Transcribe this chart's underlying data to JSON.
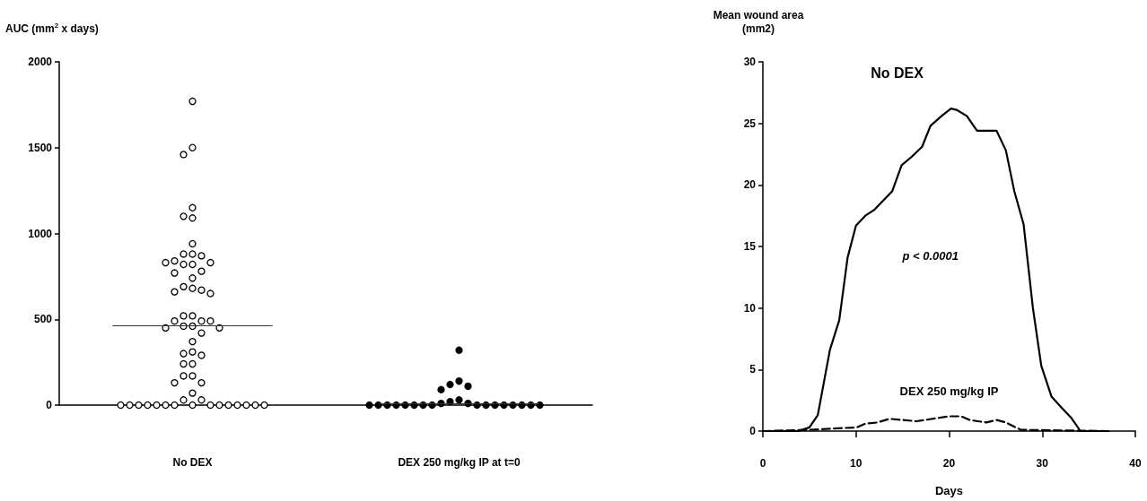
{
  "chart_data": [
    {
      "type": "scatter",
      "categories": [
        "No DEX",
        "DEX 250 mg/kg IP at t=0"
      ],
      "ylabel": "AUC (mm$^{2}$ x days)",
      "ylim": [
        0,
        2000
      ],
      "yticks": [
        0,
        500,
        1000,
        1500,
        2000
      ],
      "grid": false,
      "marker": "circle",
      "ref_lines": [
        {
          "axis": "y",
          "value": 462
        },
        {
          "axis": "y",
          "value": 10
        }
      ],
      "series": [
        {
          "color": "#ffffff",
          "x": [
            "No DEX",
            "No DEX",
            "No DEX",
            "No DEX",
            "No DEX",
            "No DEX",
            "No DEX",
            "No DEX",
            "No DEX",
            "No DEX",
            "No DEX",
            "No DEX",
            "No DEX",
            "No DEX",
            "No DEX",
            "No DEX",
            "No DEX",
            "No DEX",
            "No DEX",
            "No DEX",
            "No DEX",
            "No DEX",
            "No DEX",
            "No DEX",
            "No DEX",
            "No DEX",
            "No DEX",
            "No DEX",
            "No DEX",
            "No DEX",
            "No DEX",
            "No DEX",
            "No DEX",
            "No DEX",
            "No DEX",
            "No DEX",
            "No DEX",
            "No DEX",
            "No DEX",
            "No DEX",
            "No DEX",
            "No DEX",
            "No DEX",
            "No DEX",
            "No DEX",
            "No DEX",
            "No DEX",
            "No DEX",
            "No DEX",
            "No DEX",
            "No DEX",
            "No DEX",
            "No DEX",
            "No DEX",
            "No DEX",
            "No DEX",
            "No DEX",
            "No DEX",
            "No DEX",
            "No DEX",
            "No DEX"
          ],
          "values": [
            1770,
            1500,
            1460,
            1150,
            1100,
            1090,
            940,
            880,
            870,
            880,
            840,
            830,
            820,
            820,
            830,
            780,
            770,
            740,
            690,
            670,
            650,
            660,
            680,
            520,
            520,
            490,
            490,
            490,
            460,
            450,
            450,
            460,
            420,
            370,
            300,
            310,
            290,
            240,
            240,
            170,
            170,
            130,
            130,
            70,
            30,
            30,
            0,
            0,
            0,
            0,
            0,
            0,
            0,
            0,
            0,
            0,
            0,
            0,
            0,
            0,
            0
          ]
        },
        {
          "color": "#000000",
          "x": [
            "DEX 250 mg/kg IP at t=0",
            "DEX 250 mg/kg IP at t=0",
            "DEX 250 mg/kg IP at t=0",
            "DEX 250 mg/kg IP at t=0",
            "DEX 250 mg/kg IP at t=0",
            "DEX 250 mg/kg IP at t=0",
            "DEX 250 mg/kg IP at t=0",
            "DEX 250 mg/kg IP at t=0",
            "DEX 250 mg/kg IP at t=0",
            "DEX 250 mg/kg IP at t=0",
            "DEX 250 mg/kg IP at t=0",
            "DEX 250 mg/kg IP at t=0",
            "DEX 250 mg/kg IP at t=0",
            "DEX 250 mg/kg IP at t=0",
            "DEX 250 mg/kg IP at t=0",
            "DEX 250 mg/kg IP at t=0",
            "DEX 250 mg/kg IP at t=0",
            "DEX 250 mg/kg IP at t=0",
            "DEX 250 mg/kg IP at t=0",
            "DEX 250 mg/kg IP at t=0",
            "DEX 250 mg/kg IP at t=0",
            "DEX 250 mg/kg IP at t=0",
            "DEX 250 mg/kg IP at t=0",
            "DEX 250 mg/kg IP at t=0",
            "DEX 250 mg/kg IP at t=0"
          ],
          "values": [
            320,
            140,
            120,
            110,
            90,
            30,
            10,
            10,
            20,
            0,
            0,
            0,
            0,
            0,
            0,
            0,
            0,
            0,
            0,
            0,
            0,
            0,
            0,
            0,
            0
          ]
        }
      ]
    },
    {
      "type": "line",
      "xlabel": "Days",
      "ylabel": "Mean wound area\n(mm2)",
      "xlim": [
        0,
        40
      ],
      "xticks": [
        0,
        10,
        20,
        30,
        40
      ],
      "ylim": [
        0,
        30
      ],
      "yticks": [
        0,
        5,
        10,
        15,
        20,
        25,
        30
      ],
      "grid": false,
      "marker": "none",
      "annotations": [
        "p < 0.0001"
      ],
      "series": [
        {
          "name": "No DEX",
          "color": "#000000",
          "line_style": "solid",
          "x": [
            0,
            3.8,
            5,
            5.9,
            7.2,
            8.2,
            9.1,
            10,
            11,
            12,
            13.9,
            14.9,
            16,
            17.1,
            18,
            19.2,
            20.2,
            20.8,
            21.9,
            23,
            25.1,
            26.1,
            27,
            28,
            29,
            29.9,
            31,
            32.2,
            33.1,
            34.1,
            37.1
          ],
          "values": [
            0,
            0,
            0.3,
            1.3,
            6.6,
            9,
            14.1,
            16.7,
            17.5,
            18,
            19.5,
            21.6,
            22.3,
            23.1,
            24.8,
            25.6,
            26.2,
            26.1,
            25.6,
            24.4,
            24.4,
            22.8,
            19.5,
            16.8,
            10,
            5.3,
            2.8,
            1.8,
            1.1,
            0,
            0
          ]
        },
        {
          "name": "DEX 250 mg/kg IP",
          "color": "#000000",
          "line_style": "dashed",
          "x": [
            0,
            4.8,
            10.1,
            11,
            12.3,
            13.6,
            16.5,
            20,
            21.3,
            22.2,
            24,
            25.1,
            26.1,
            27.7,
            37.1
          ],
          "values": [
            0,
            0.1,
            0.3,
            0.6,
            0.7,
            1,
            0.8,
            1.2,
            1.2,
            0.9,
            0.7,
            0.9,
            0.7,
            0.1,
            0
          ]
        }
      ]
    }
  ]
}
